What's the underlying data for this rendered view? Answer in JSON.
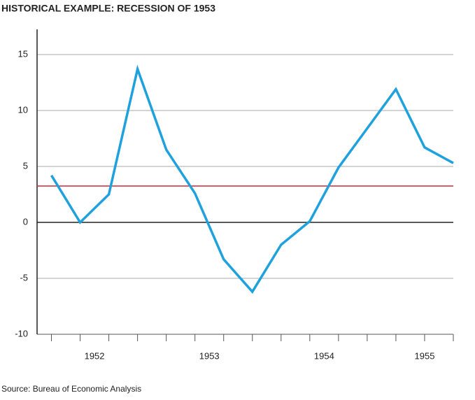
{
  "chart_data": {
    "type": "line",
    "title": "HISTORICAL EXAMPLE: RECESSION OF 1953",
    "source": "Source: Bureau of Economic Analysis",
    "x": [
      1952.125,
      1952.375,
      1952.625,
      1952.875,
      1953.125,
      1953.375,
      1953.625,
      1953.875,
      1954.125,
      1954.375,
      1954.625,
      1954.875,
      1955.125,
      1955.375,
      1955.625
    ],
    "series": [
      {
        "name": null,
        "color": "#1ea1dc",
        "values": [
          4.2,
          0,
          2.5,
          13.7,
          6.5,
          2.6,
          -3.3,
          -6.2,
          -2,
          0.1,
          4.9,
          8.4,
          11.9,
          6.7,
          5.3
        ]
      }
    ],
    "xlim": [
      1952,
      1955.625
    ],
    "xticks": [
      {
        "value": 1952.5,
        "label": "1952"
      },
      {
        "value": 1953.5,
        "label": "1953"
      },
      {
        "value": 1954.5,
        "label": "1954"
      },
      {
        "value": 1955.375,
        "label": "1955"
      }
    ],
    "xminorticks": [
      1952.125,
      1952.375,
      1952.625,
      1952.875,
      1953.125,
      1953.375,
      1953.625,
      1953.875,
      1954.125,
      1954.375,
      1954.625,
      1954.875,
      1955.125,
      1955.375,
      1955.625
    ],
    "ylim": [
      -10,
      17.25
    ],
    "yticks": [
      -10,
      -5,
      0,
      5,
      10,
      15
    ],
    "grid": true,
    "reference_line": {
      "value": 3.25,
      "color": "#d0263c"
    }
  }
}
